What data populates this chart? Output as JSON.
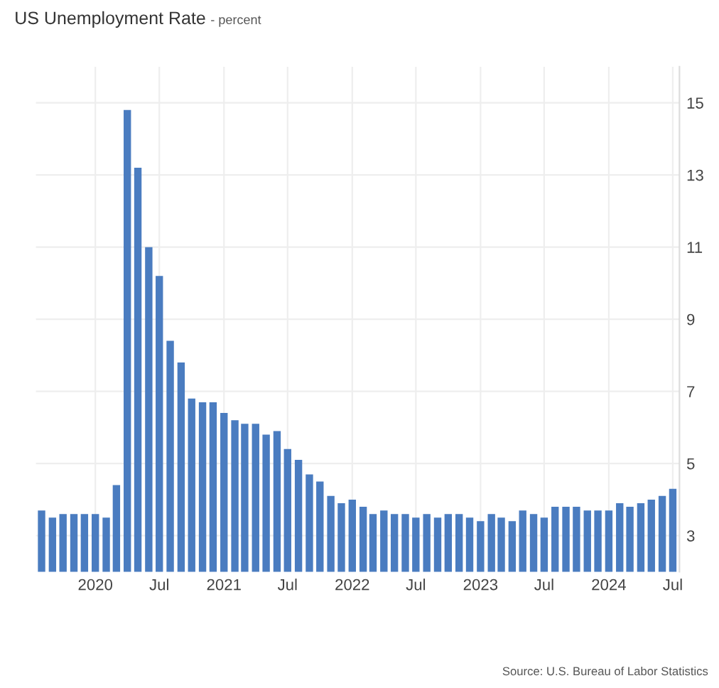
{
  "chart_data": {
    "type": "bar",
    "title": "US Unemployment Rate",
    "subtitle": "- percent",
    "x": [
      "2019-08",
      "2019-09",
      "2019-10",
      "2019-11",
      "2019-12",
      "2020-01",
      "2020-02",
      "2020-03",
      "2020-04",
      "2020-05",
      "2020-06",
      "2020-07",
      "2020-08",
      "2020-09",
      "2020-10",
      "2020-11",
      "2020-12",
      "2021-01",
      "2021-02",
      "2021-03",
      "2021-04",
      "2021-05",
      "2021-06",
      "2021-07",
      "2021-08",
      "2021-09",
      "2021-10",
      "2021-11",
      "2021-12",
      "2022-01",
      "2022-02",
      "2022-03",
      "2022-04",
      "2022-05",
      "2022-06",
      "2022-07",
      "2022-08",
      "2022-09",
      "2022-10",
      "2022-11",
      "2022-12",
      "2023-01",
      "2023-02",
      "2023-03",
      "2023-04",
      "2023-05",
      "2023-06",
      "2023-07",
      "2023-08",
      "2023-09",
      "2023-10",
      "2023-11",
      "2023-12",
      "2024-01",
      "2024-02",
      "2024-03",
      "2024-04",
      "2024-05",
      "2024-06",
      "2024-07"
    ],
    "series": [
      {
        "color": "#4a7cc0",
        "values": [
          3.7,
          3.5,
          3.6,
          3.6,
          3.6,
          3.6,
          3.5,
          4.4,
          14.8,
          13.2,
          11.0,
          10.2,
          8.4,
          7.8,
          6.8,
          6.7,
          6.7,
          6.4,
          6.2,
          6.1,
          6.1,
          5.8,
          5.9,
          5.4,
          5.1,
          4.7,
          4.5,
          4.1,
          3.9,
          4.0,
          3.8,
          3.6,
          3.7,
          3.6,
          3.6,
          3.5,
          3.6,
          3.5,
          3.6,
          3.6,
          3.5,
          3.4,
          3.6,
          3.5,
          3.4,
          3.7,
          3.6,
          3.5,
          3.8,
          3.8,
          3.8,
          3.7,
          3.7,
          3.7,
          3.9,
          3.8,
          3.9,
          4.0,
          4.1,
          4.3
        ]
      }
    ],
    "xlim": [
      "2019-07-16",
      "2024-07-20"
    ],
    "xticks": [
      {
        "value": "2020-01",
        "label": "2020"
      },
      {
        "value": "2020-07",
        "label": "Jul"
      },
      {
        "value": "2021-01",
        "label": "2021"
      },
      {
        "value": "2021-07",
        "label": "Jul"
      },
      {
        "value": "2022-01",
        "label": "2022"
      },
      {
        "value": "2022-07",
        "label": "Jul"
      },
      {
        "value": "2023-01",
        "label": "2023"
      },
      {
        "value": "2023-07",
        "label": "Jul"
      },
      {
        "value": "2024-01",
        "label": "2024"
      },
      {
        "value": "2024-07",
        "label": "Jul"
      }
    ],
    "ylim": [
      2,
      16
    ],
    "yticks": [
      3,
      5,
      7,
      9,
      11,
      13,
      15
    ],
    "grid": true,
    "legend": false,
    "annotations": [
      "Source: U.S. Bureau of Labor Statistics"
    ]
  }
}
